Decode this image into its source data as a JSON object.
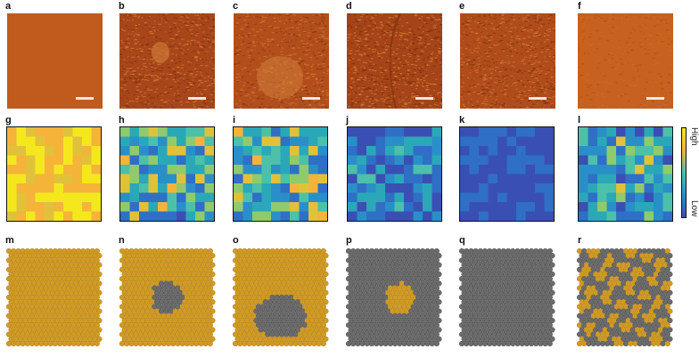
{
  "panel_labels": [
    "a",
    "b",
    "c",
    "d",
    "e",
    "f",
    "g",
    "h",
    "i",
    "j",
    "k",
    "l",
    "m",
    "n",
    "o",
    "p",
    "q",
    "r"
  ],
  "colorbar": {
    "high": "High",
    "low": "Low"
  },
  "colors": {
    "afm_base": "#b9501a",
    "atom_gold": "#d19a22",
    "atom_grey": "#6b6b6b"
  }
}
